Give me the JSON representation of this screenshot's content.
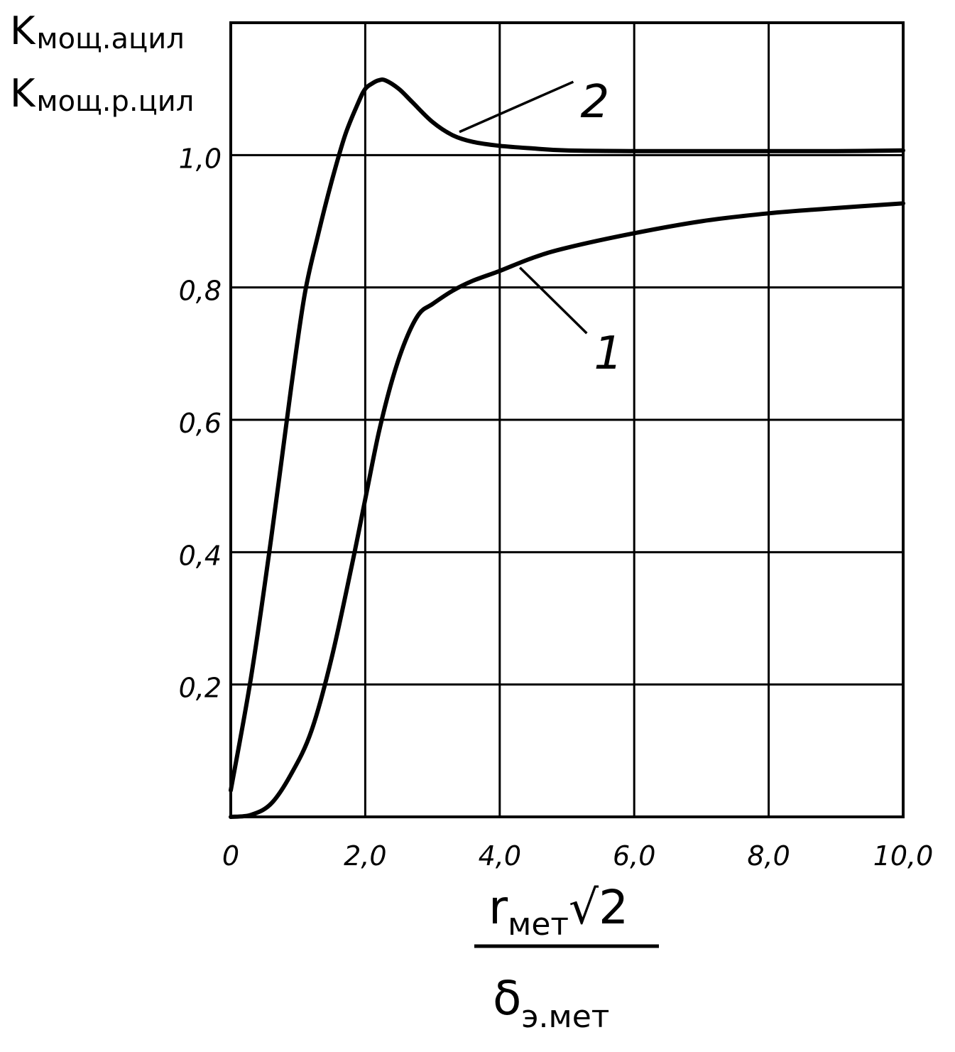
{
  "chart_data": {
    "type": "line",
    "title": "",
    "ylabel_lines": [
      {
        "main": "K",
        "sub": "мощ.ацил"
      },
      {
        "main": "K",
        "sub": "мощ.р.цил"
      }
    ],
    "xlabel": {
      "numerator_main": "r",
      "numerator_sub": "мет",
      "numerator_radical": "√2",
      "denominator_main": "δ",
      "denominator_sub": "э.мет"
    },
    "xlim": [
      0,
      10
    ],
    "ylim": [
      0,
      1.2
    ],
    "x_ticks": [
      {
        "value": 0,
        "label": "0"
      },
      {
        "value": 2,
        "label": "2,0"
      },
      {
        "value": 4,
        "label": "4,0"
      },
      {
        "value": 6,
        "label": "6,0"
      },
      {
        "value": 8,
        "label": "8,0"
      },
      {
        "value": 10,
        "label": "10,0"
      }
    ],
    "y_ticks": [
      {
        "value": 0.2,
        "label": "0,2"
      },
      {
        "value": 0.4,
        "label": "0,4"
      },
      {
        "value": 0.6,
        "label": "0,6"
      },
      {
        "value": 0.8,
        "label": "0,8"
      },
      {
        "value": 1.0,
        "label": "1,0"
      }
    ],
    "grid": true,
    "series": [
      {
        "name": "1",
        "x": [
          0,
          0.3,
          0.6,
          0.9,
          1.2,
          1.5,
          1.8,
          2.0,
          2.2,
          2.4,
          2.6,
          2.8,
          3.0,
          3.3,
          3.6,
          4.0,
          4.5,
          5.0,
          6.0,
          7.0,
          8.0,
          9.0,
          10.0
        ],
        "y": [
          0,
          0.003,
          0.02,
          0.065,
          0.13,
          0.24,
          0.38,
          0.48,
          0.58,
          0.66,
          0.72,
          0.76,
          0.775,
          0.795,
          0.81,
          0.825,
          0.845,
          0.86,
          0.882,
          0.9,
          0.912,
          0.92,
          0.927
        ]
      },
      {
        "name": "2",
        "x": [
          0,
          0.3,
          0.6,
          0.9,
          1.1,
          1.3,
          1.5,
          1.7,
          1.9,
          2.0,
          2.1,
          2.2,
          2.3,
          2.5,
          2.7,
          3.0,
          3.3,
          3.6,
          4.0,
          4.5,
          5.0,
          6.0,
          7.0,
          8.0,
          9.0,
          10.0
        ],
        "y": [
          0.04,
          0.21,
          0.42,
          0.65,
          0.79,
          0.88,
          0.96,
          1.03,
          1.08,
          1.1,
          1.108,
          1.113,
          1.113,
          1.1,
          1.08,
          1.05,
          1.03,
          1.02,
          1.014,
          1.01,
          1.007,
          1.006,
          1.006,
          1.006,
          1.006,
          1.007
        ]
      }
    ],
    "annotations": [
      {
        "series_index": 0,
        "label": "1",
        "anchor_x": 4.3,
        "anchor_y": 0.83,
        "text_x": 5.4,
        "text_y": 0.72
      },
      {
        "series_index": 1,
        "label": "2",
        "anchor_x": 3.4,
        "anchor_y": 1.035,
        "text_x": 5.2,
        "text_y": 1.1
      }
    ]
  }
}
